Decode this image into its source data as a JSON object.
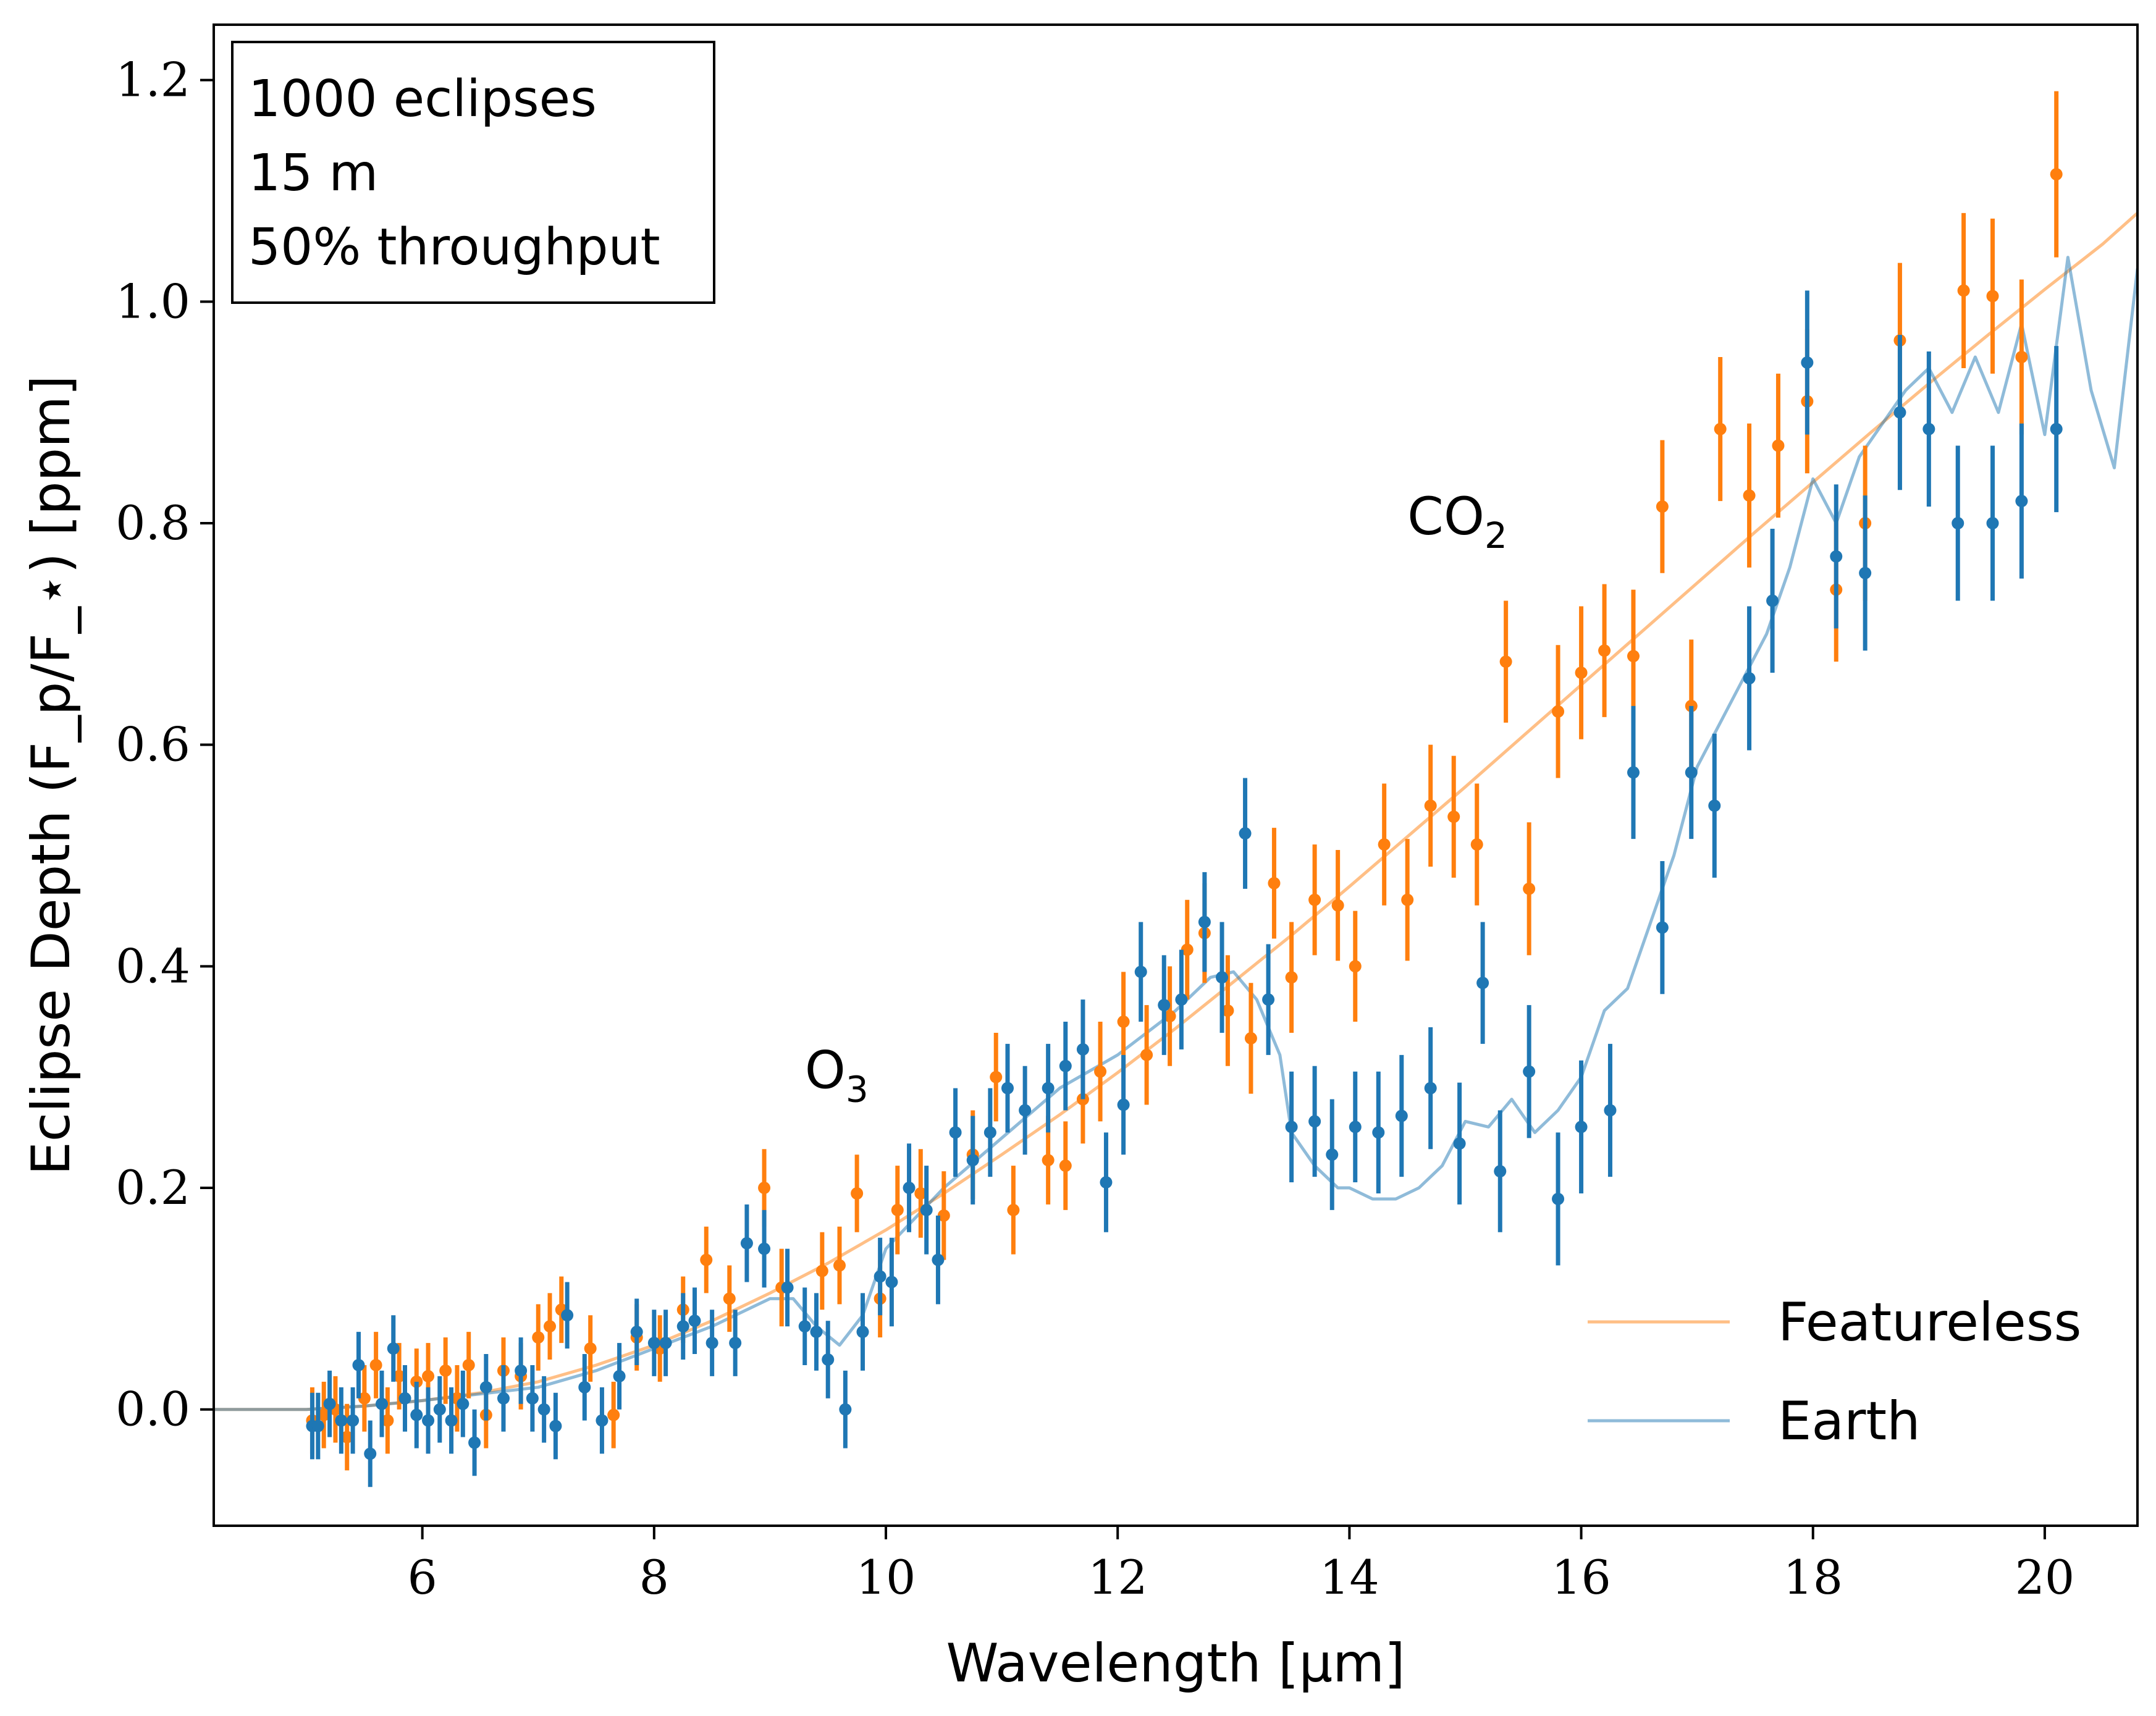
{
  "chart_data": {
    "type": "scatter",
    "xlabel": "Wavelength [μm]",
    "ylabel": "Eclipse Depth (F_p/F_⋆) [ppm]",
    "xlim": [
      4.2,
      20.8
    ],
    "ylim": [
      -0.105,
      1.25
    ],
    "x_ticks": [
      6,
      8,
      10,
      12,
      14,
      16,
      18,
      20
    ],
    "y_ticks": [
      0.0,
      0.2,
      0.4,
      0.6,
      0.8,
      1.0,
      1.2
    ],
    "x_tick_labels": [
      "6",
      "8",
      "10",
      "12",
      "14",
      "16",
      "18",
      "20"
    ],
    "y_tick_labels": [
      "0.0",
      "0.2",
      "0.4",
      "0.6",
      "0.8",
      "1.0",
      "1.2"
    ],
    "grid": false,
    "legend_position": "bottom-right",
    "info_box": [
      "1000 eclipses",
      "15 m",
      "50% throughput"
    ],
    "annotations": [
      {
        "text": "O",
        "sub": "3",
        "x": 9.3,
        "y": 0.29
      },
      {
        "text": "CO",
        "sub": "2",
        "x": 14.5,
        "y": 0.79
      }
    ],
    "colors": {
      "featureless": "#ff7f0e",
      "earth": "#1f77b4"
    },
    "series": [
      {
        "name": "Featureless",
        "kind": "model",
        "color": "#ff7f0e",
        "opacity": 0.5,
        "x": [
          4.2,
          5.0,
          5.5,
          6.0,
          6.5,
          7.0,
          7.5,
          8.0,
          8.5,
          9.0,
          9.5,
          10.0,
          10.5,
          11.0,
          11.5,
          12.0,
          12.5,
          13.0,
          13.5,
          14.0,
          14.5,
          15.0,
          15.5,
          16.0,
          16.5,
          17.0,
          17.5,
          18.0,
          18.5,
          19.0,
          19.5,
          20.0,
          20.5,
          20.8
        ],
        "y": [
          0.0,
          0.0,
          0.003,
          0.008,
          0.015,
          0.025,
          0.04,
          0.058,
          0.08,
          0.105,
          0.132,
          0.162,
          0.195,
          0.23,
          0.266,
          0.304,
          0.344,
          0.386,
          0.428,
          0.472,
          0.517,
          0.562,
          0.608,
          0.654,
          0.7,
          0.746,
          0.792,
          0.837,
          0.882,
          0.926,
          0.969,
          1.011,
          1.052,
          1.08
        ]
      },
      {
        "name": "Earth",
        "kind": "model",
        "color": "#1f77b4",
        "opacity": 0.5,
        "x": [
          4.2,
          5.0,
          5.5,
          6.0,
          6.5,
          7.0,
          7.5,
          8.0,
          8.5,
          9.0,
          9.2,
          9.4,
          9.6,
          9.8,
          10.0,
          10.5,
          11.0,
          11.5,
          12.0,
          12.5,
          12.8,
          13.0,
          13.2,
          13.4,
          13.5,
          13.7,
          13.9,
          14.0,
          14.2,
          14.4,
          14.6,
          14.8,
          15.0,
          15.2,
          15.4,
          15.6,
          15.8,
          16.0,
          16.2,
          16.4,
          16.6,
          16.8,
          17.0,
          17.2,
          17.4,
          17.6,
          17.8,
          18.0,
          18.2,
          18.4,
          18.6,
          18.8,
          19.0,
          19.2,
          19.4,
          19.6,
          19.8,
          20.0,
          20.2,
          20.4,
          20.6,
          20.8
        ],
        "y": [
          0.0,
          0.0,
          0.003,
          0.008,
          0.014,
          0.02,
          0.035,
          0.055,
          0.075,
          0.1,
          0.1,
          0.075,
          0.058,
          0.085,
          0.145,
          0.2,
          0.245,
          0.29,
          0.32,
          0.36,
          0.39,
          0.395,
          0.37,
          0.32,
          0.25,
          0.22,
          0.2,
          0.2,
          0.19,
          0.19,
          0.2,
          0.22,
          0.26,
          0.255,
          0.28,
          0.25,
          0.27,
          0.3,
          0.36,
          0.38,
          0.44,
          0.5,
          0.58,
          0.62,
          0.66,
          0.7,
          0.76,
          0.84,
          0.8,
          0.86,
          0.89,
          0.92,
          0.94,
          0.9,
          0.95,
          0.9,
          0.98,
          0.88,
          1.04,
          0.92,
          0.85,
          1.03
        ]
      },
      {
        "name": "Featureless",
        "kind": "points",
        "color": "#ff7f0e",
        "points": [
          [
            5.05,
            -0.01,
            0.03
          ],
          [
            5.15,
            -0.005,
            0.03
          ],
          [
            5.25,
            0.0,
            0.03
          ],
          [
            5.35,
            -0.025,
            0.03
          ],
          [
            5.5,
            0.01,
            0.03
          ],
          [
            5.6,
            0.04,
            0.03
          ],
          [
            5.7,
            -0.01,
            0.03
          ],
          [
            5.8,
            0.03,
            0.03
          ],
          [
            5.95,
            0.025,
            0.03
          ],
          [
            6.05,
            0.03,
            0.03
          ],
          [
            6.2,
            0.035,
            0.03
          ],
          [
            6.3,
            0.01,
            0.03
          ],
          [
            6.4,
            0.04,
            0.03
          ],
          [
            6.55,
            -0.005,
            0.03
          ],
          [
            6.7,
            0.035,
            0.03
          ],
          [
            6.85,
            0.03,
            0.03
          ],
          [
            7.0,
            0.065,
            0.03
          ],
          [
            7.1,
            0.075,
            0.03
          ],
          [
            7.2,
            0.09,
            0.03
          ],
          [
            7.45,
            0.055,
            0.03
          ],
          [
            7.65,
            -0.005,
            0.03
          ],
          [
            7.85,
            0.065,
            0.03
          ],
          [
            8.05,
            0.055,
            0.03
          ],
          [
            8.25,
            0.09,
            0.03
          ],
          [
            8.45,
            0.135,
            0.03
          ],
          [
            8.65,
            0.1,
            0.03
          ],
          [
            8.95,
            0.2,
            0.035
          ],
          [
            9.1,
            0.11,
            0.035
          ],
          [
            9.45,
            0.125,
            0.035
          ],
          [
            9.6,
            0.13,
            0.035
          ],
          [
            9.75,
            0.195,
            0.035
          ],
          [
            9.95,
            0.1,
            0.035
          ],
          [
            10.1,
            0.18,
            0.04
          ],
          [
            10.3,
            0.195,
            0.04
          ],
          [
            10.5,
            0.175,
            0.04
          ],
          [
            10.75,
            0.23,
            0.04
          ],
          [
            10.95,
            0.3,
            0.04
          ],
          [
            11.1,
            0.18,
            0.04
          ],
          [
            11.4,
            0.225,
            0.04
          ],
          [
            11.55,
            0.22,
            0.04
          ],
          [
            11.7,
            0.28,
            0.04
          ],
          [
            11.85,
            0.305,
            0.045
          ],
          [
            12.05,
            0.35,
            0.045
          ],
          [
            12.25,
            0.32,
            0.045
          ],
          [
            12.45,
            0.355,
            0.045
          ],
          [
            12.6,
            0.415,
            0.045
          ],
          [
            12.75,
            0.43,
            0.045
          ],
          [
            12.95,
            0.36,
            0.05
          ],
          [
            13.15,
            0.335,
            0.05
          ],
          [
            13.35,
            0.475,
            0.05
          ],
          [
            13.5,
            0.39,
            0.05
          ],
          [
            13.7,
            0.46,
            0.05
          ],
          [
            13.9,
            0.455,
            0.05
          ],
          [
            14.05,
            0.4,
            0.05
          ],
          [
            14.3,
            0.51,
            0.055
          ],
          [
            14.5,
            0.46,
            0.055
          ],
          [
            14.7,
            0.545,
            0.055
          ],
          [
            14.9,
            0.535,
            0.055
          ],
          [
            15.1,
            0.51,
            0.055
          ],
          [
            15.35,
            0.675,
            0.055
          ],
          [
            15.55,
            0.47,
            0.06
          ],
          [
            15.8,
            0.63,
            0.06
          ],
          [
            16.0,
            0.665,
            0.06
          ],
          [
            16.2,
            0.685,
            0.06
          ],
          [
            16.45,
            0.68,
            0.06
          ],
          [
            16.7,
            0.815,
            0.06
          ],
          [
            16.95,
            0.635,
            0.06
          ],
          [
            17.2,
            0.885,
            0.065
          ],
          [
            17.45,
            0.825,
            0.065
          ],
          [
            17.7,
            0.87,
            0.065
          ],
          [
            17.95,
            0.91,
            0.065
          ],
          [
            18.2,
            0.74,
            0.065
          ],
          [
            18.45,
            0.8,
            0.07
          ],
          [
            18.75,
            0.965,
            0.07
          ],
          [
            19.3,
            1.01,
            0.07
          ],
          [
            19.55,
            1.005,
            0.07
          ],
          [
            19.8,
            0.95,
            0.07
          ],
          [
            20.1,
            1.115,
            0.075
          ]
        ]
      },
      {
        "name": "Earth",
        "kind": "points",
        "color": "#1f77b4",
        "points": [
          [
            5.05,
            -0.015,
            0.03
          ],
          [
            5.1,
            -0.015,
            0.03
          ],
          [
            5.2,
            0.005,
            0.03
          ],
          [
            5.3,
            -0.01,
            0.03
          ],
          [
            5.4,
            -0.01,
            0.03
          ],
          [
            5.45,
            0.04,
            0.03
          ],
          [
            5.55,
            -0.04,
            0.03
          ],
          [
            5.65,
            0.005,
            0.03
          ],
          [
            5.75,
            0.055,
            0.03
          ],
          [
            5.85,
            0.01,
            0.03
          ],
          [
            5.95,
            -0.005,
            0.03
          ],
          [
            6.05,
            -0.01,
            0.03
          ],
          [
            6.15,
            0.0,
            0.03
          ],
          [
            6.25,
            -0.01,
            0.03
          ],
          [
            6.35,
            0.005,
            0.03
          ],
          [
            6.45,
            -0.03,
            0.03
          ],
          [
            6.55,
            0.02,
            0.03
          ],
          [
            6.7,
            0.01,
            0.03
          ],
          [
            6.85,
            0.035,
            0.03
          ],
          [
            6.95,
            0.01,
            0.03
          ],
          [
            7.05,
            0.0,
            0.03
          ],
          [
            7.15,
            -0.015,
            0.03
          ],
          [
            7.25,
            0.085,
            0.03
          ],
          [
            7.4,
            0.02,
            0.03
          ],
          [
            7.55,
            -0.01,
            0.03
          ],
          [
            7.7,
            0.03,
            0.03
          ],
          [
            7.85,
            0.07,
            0.03
          ],
          [
            8.0,
            0.06,
            0.03
          ],
          [
            8.1,
            0.06,
            0.03
          ],
          [
            8.25,
            0.075,
            0.03
          ],
          [
            8.35,
            0.08,
            0.03
          ],
          [
            8.5,
            0.06,
            0.03
          ],
          [
            8.7,
            0.06,
            0.03
          ],
          [
            8.8,
            0.15,
            0.035
          ],
          [
            8.95,
            0.145,
            0.035
          ],
          [
            9.15,
            0.11,
            0.035
          ],
          [
            9.3,
            0.075,
            0.035
          ],
          [
            9.4,
            0.07,
            0.035
          ],
          [
            9.5,
            0.045,
            0.035
          ],
          [
            9.65,
            0.0,
            0.035
          ],
          [
            9.8,
            0.07,
            0.035
          ],
          [
            9.95,
            0.12,
            0.035
          ],
          [
            10.05,
            0.115,
            0.04
          ],
          [
            10.2,
            0.2,
            0.04
          ],
          [
            10.35,
            0.18,
            0.04
          ],
          [
            10.45,
            0.135,
            0.04
          ],
          [
            10.6,
            0.25,
            0.04
          ],
          [
            10.75,
            0.225,
            0.04
          ],
          [
            10.9,
            0.25,
            0.04
          ],
          [
            11.05,
            0.29,
            0.04
          ],
          [
            11.2,
            0.27,
            0.04
          ],
          [
            11.4,
            0.29,
            0.04
          ],
          [
            11.55,
            0.31,
            0.04
          ],
          [
            11.7,
            0.325,
            0.045
          ],
          [
            11.9,
            0.205,
            0.045
          ],
          [
            12.05,
            0.275,
            0.045
          ],
          [
            12.2,
            0.395,
            0.045
          ],
          [
            12.4,
            0.365,
            0.045
          ],
          [
            12.55,
            0.37,
            0.045
          ],
          [
            12.75,
            0.44,
            0.045
          ],
          [
            12.9,
            0.39,
            0.05
          ],
          [
            13.1,
            0.52,
            0.05
          ],
          [
            13.3,
            0.37,
            0.05
          ],
          [
            13.5,
            0.255,
            0.05
          ],
          [
            13.7,
            0.26,
            0.05
          ],
          [
            13.85,
            0.23,
            0.05
          ],
          [
            14.05,
            0.255,
            0.05
          ],
          [
            14.25,
            0.25,
            0.055
          ],
          [
            14.45,
            0.265,
            0.055
          ],
          [
            14.7,
            0.29,
            0.055
          ],
          [
            14.95,
            0.24,
            0.055
          ],
          [
            15.15,
            0.385,
            0.055
          ],
          [
            15.3,
            0.215,
            0.055
          ],
          [
            15.55,
            0.305,
            0.06
          ],
          [
            15.8,
            0.19,
            0.06
          ],
          [
            16.0,
            0.255,
            0.06
          ],
          [
            16.25,
            0.27,
            0.06
          ],
          [
            16.45,
            0.575,
            0.06
          ],
          [
            16.7,
            0.435,
            0.06
          ],
          [
            16.95,
            0.575,
            0.06
          ],
          [
            17.15,
            0.545,
            0.065
          ],
          [
            17.45,
            0.66,
            0.065
          ],
          [
            17.65,
            0.73,
            0.065
          ],
          [
            17.95,
            0.945,
            0.065
          ],
          [
            18.2,
            0.77,
            0.065
          ],
          [
            18.45,
            0.755,
            0.07
          ],
          [
            18.75,
            0.9,
            0.07
          ],
          [
            19.0,
            0.885,
            0.07
          ],
          [
            19.25,
            0.8,
            0.07
          ],
          [
            19.55,
            0.8,
            0.07
          ],
          [
            19.8,
            0.82,
            0.07
          ],
          [
            20.1,
            0.885,
            0.075
          ]
        ]
      }
    ]
  }
}
